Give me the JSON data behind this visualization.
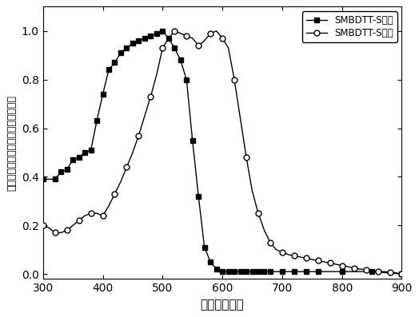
{
  "solution_x": [
    300,
    320,
    330,
    340,
    350,
    360,
    370,
    380,
    390,
    400,
    410,
    420,
    430,
    440,
    450,
    460,
    470,
    480,
    490,
    500,
    510,
    520,
    530,
    540,
    550,
    560,
    570,
    580,
    590,
    600,
    610,
    620,
    630,
    640,
    650,
    660,
    670,
    680,
    700,
    720,
    740,
    760,
    800,
    850,
    900
  ],
  "solution_y": [
    0.39,
    0.39,
    0.42,
    0.43,
    0.47,
    0.48,
    0.5,
    0.51,
    0.63,
    0.74,
    0.84,
    0.87,
    0.91,
    0.93,
    0.95,
    0.96,
    0.97,
    0.98,
    0.99,
    1.0,
    0.97,
    0.93,
    0.88,
    0.8,
    0.55,
    0.32,
    0.11,
    0.05,
    0.02,
    0.01,
    0.01,
    0.01,
    0.01,
    0.01,
    0.01,
    0.01,
    0.01,
    0.01,
    0.01,
    0.01,
    0.01,
    0.01,
    0.01,
    0.01,
    0.0
  ],
  "film_x": [
    300,
    310,
    320,
    330,
    340,
    350,
    360,
    370,
    380,
    390,
    400,
    410,
    420,
    430,
    440,
    450,
    460,
    470,
    480,
    490,
    500,
    510,
    520,
    530,
    540,
    550,
    560,
    570,
    580,
    590,
    600,
    610,
    620,
    630,
    640,
    650,
    660,
    670,
    680,
    690,
    700,
    710,
    720,
    730,
    740,
    750,
    760,
    770,
    780,
    790,
    800,
    810,
    820,
    830,
    840,
    850,
    860,
    870,
    880,
    890,
    900
  ],
  "film_y": [
    0.2,
    0.19,
    0.17,
    0.17,
    0.18,
    0.2,
    0.22,
    0.24,
    0.25,
    0.25,
    0.24,
    0.28,
    0.33,
    0.38,
    0.44,
    0.5,
    0.57,
    0.65,
    0.73,
    0.82,
    0.93,
    0.97,
    1.0,
    0.99,
    0.98,
    0.97,
    0.94,
    0.96,
    0.99,
    1.0,
    0.97,
    0.93,
    0.8,
    0.64,
    0.48,
    0.34,
    0.25,
    0.18,
    0.13,
    0.1,
    0.09,
    0.08,
    0.075,
    0.07,
    0.065,
    0.06,
    0.055,
    0.05,
    0.045,
    0.04,
    0.035,
    0.03,
    0.025,
    0.02,
    0.018,
    0.015,
    0.012,
    0.01,
    0.008,
    0.005,
    0.0
  ],
  "xlabel": "波长（纳米）",
  "ylabel_chars": [
    "归",
    "一",
    "化",
    "的",
    "紫",
    "外",
    "可",
    "见",
    "光",
    "吸",
    "收",
    "（",
    "吸",
    "光",
    "度",
    "）"
  ],
  "legend_solution": "SMBDTT-S溶液",
  "legend_film": "SMBDTT-S薄膜",
  "xlim": [
    300,
    900
  ],
  "ylim": [
    -0.02,
    1.1
  ],
  "xticks": [
    300,
    400,
    500,
    600,
    700,
    800,
    900
  ],
  "yticks": [
    0.0,
    0.2,
    0.4,
    0.6,
    0.8,
    1.0
  ],
  "line_color": "#000000",
  "bg_color": "#ffffff",
  "marker_interval_solution": 2,
  "marker_interval_film": 3
}
